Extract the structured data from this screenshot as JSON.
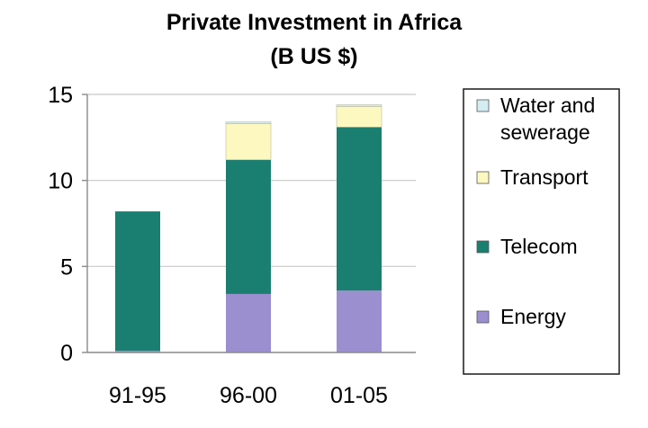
{
  "chart_data": {
    "type": "bar",
    "stacked": true,
    "title": "Private Investment in Africa",
    "subtitle": "(B US $)",
    "xlabel": "",
    "ylabel": "",
    "categories": [
      "91-95",
      "96-00",
      "01-05"
    ],
    "ylim": [
      0,
      15
    ],
    "yticks": [
      0,
      5,
      10,
      15
    ],
    "grid": true,
    "legend_position": "right",
    "series": [
      {
        "name": "Energy",
        "color": "#9b8fd0",
        "values": [
          0.1,
          3.4,
          3.6
        ]
      },
      {
        "name": "Telecom",
        "color": "#1a7f70",
        "values": [
          8.1,
          7.8,
          9.5
        ]
      },
      {
        "name": "Transport",
        "color": "#fdf8c0",
        "values": [
          0.0,
          2.1,
          1.2
        ]
      },
      {
        "name": "Water and sewerage",
        "color": "#d4ecf3",
        "values": [
          0.0,
          0.1,
          0.1
        ]
      }
    ],
    "legend_order": [
      "Water and sewerage",
      "Transport",
      "Telecom",
      "Energy"
    ]
  }
}
